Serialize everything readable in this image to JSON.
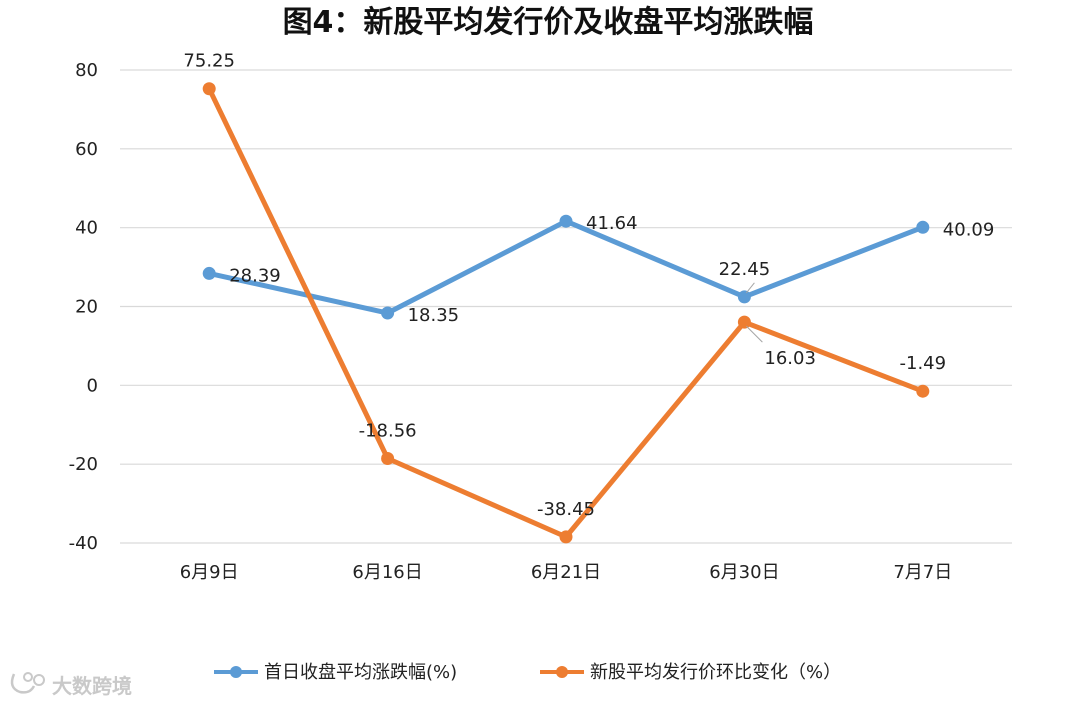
{
  "chart_data": {
    "type": "line",
    "title": "图4：新股平均发行价及收盘平均涨跌幅",
    "categories": [
      "6月9日",
      "6月16日",
      "6月21日",
      "6月30日",
      "7月7日"
    ],
    "ylim": [
      -40,
      80
    ],
    "yticks": [
      "80",
      "60",
      "40",
      "20",
      "0",
      "-20",
      "-40"
    ],
    "grid": true,
    "legend_position": "bottom",
    "series": [
      {
        "name": "首日收盘平均涨跌幅(%)",
        "color": "#5B9BD5",
        "values": [
          28.39,
          18.35,
          41.64,
          22.45,
          40.09
        ],
        "labels": [
          "28.39",
          "18.35",
          "41.64",
          "22.45",
          "40.09"
        ]
      },
      {
        "name": "新股平均发行价环比变化（%）",
        "color": "#ED7D31",
        "values": [
          75.25,
          -18.56,
          -38.45,
          16.03,
          -1.49
        ],
        "labels": [
          "75.25",
          "-18.56",
          "-38.45",
          "16.03",
          "-1.49"
        ]
      }
    ]
  },
  "watermark": {
    "icon": "brand-logo-icon",
    "text": "大数跨境"
  }
}
